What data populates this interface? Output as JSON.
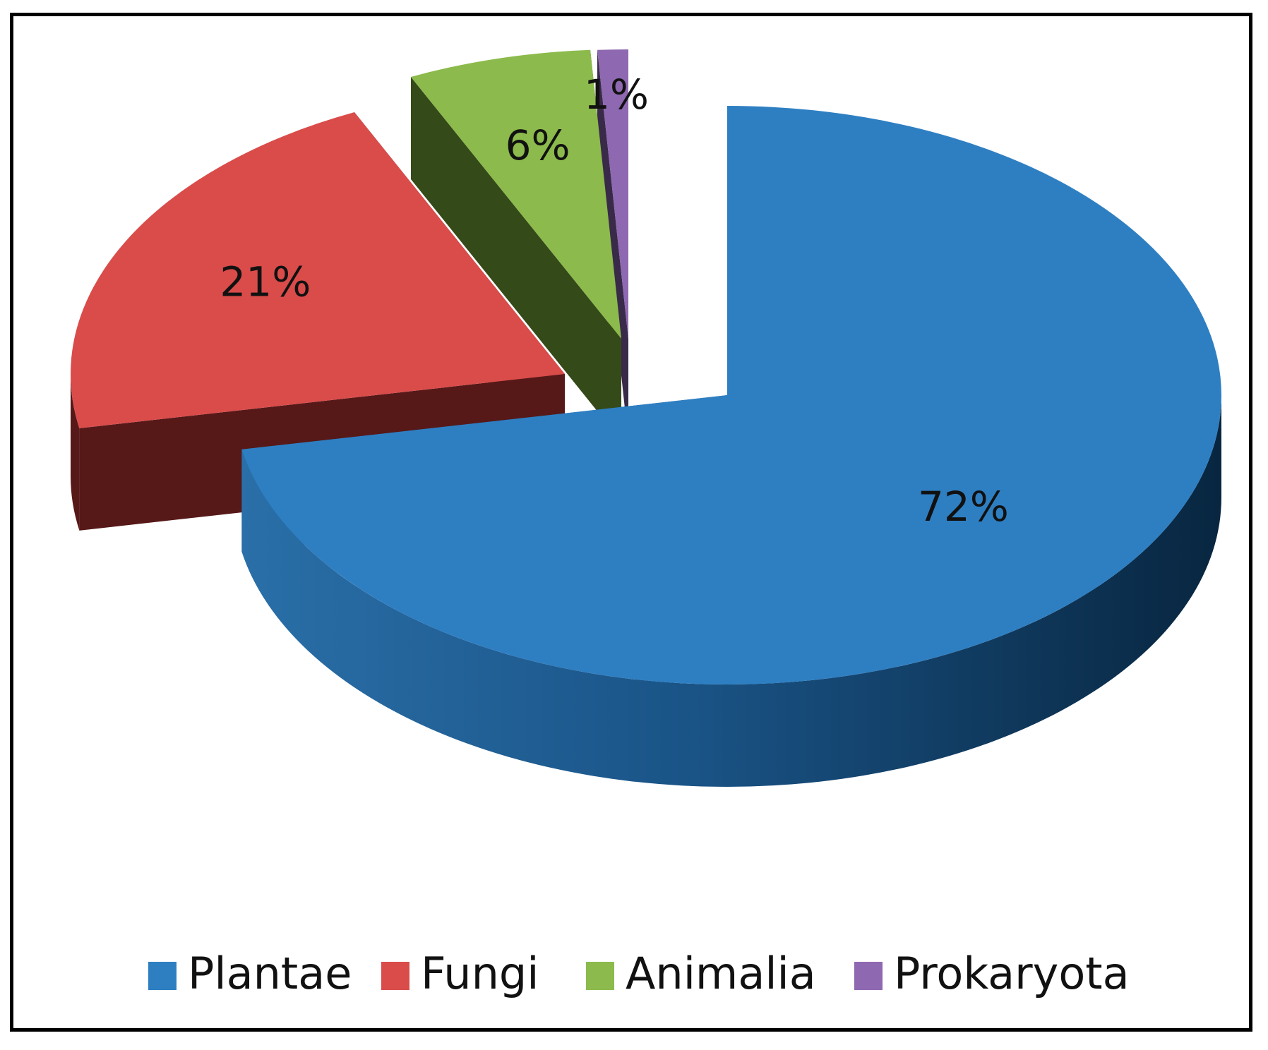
{
  "chart_data": {
    "type": "pie",
    "style": "3d-exploded",
    "legend_position": "bottom",
    "slices": [
      {
        "name": "Plantae",
        "value": 72,
        "label": "72%",
        "color": "#2e7fc2",
        "side_color": "#1b5a8d"
      },
      {
        "name": "Fungi",
        "value": 21,
        "label": "21%",
        "color": "#d94c4a",
        "side_color": "#571818"
      },
      {
        "name": "Animalia",
        "value": 6,
        "label": "6%",
        "color": "#8cba4c",
        "side_color": "#344a18"
      },
      {
        "name": "Prokaryota",
        "value": 1,
        "label": "1%",
        "color": "#8e68b0",
        "side_color": "#3a2a4a"
      }
    ]
  }
}
